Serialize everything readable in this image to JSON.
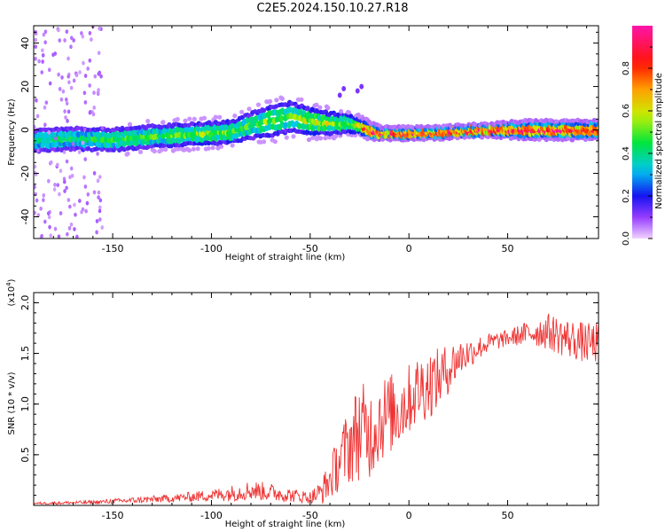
{
  "title": "C2E5.2024.150.10.27.R18",
  "colors": {
    "axis": "#000000",
    "snr_line": "#ee3333",
    "background": "#ffffff"
  },
  "chart_data": [
    {
      "type": "heatmap",
      "xlabel": "Height of straight line (km)",
      "ylabel": "Frequency (Hz)",
      "xlim": [
        -190,
        96
      ],
      "ylim": [
        -50,
        48
      ],
      "x_ticks": [
        -150,
        -100,
        -50,
        0,
        50
      ],
      "y_ticks": [
        -40,
        -20,
        0,
        20,
        40
      ],
      "colorbar": {
        "label": "Normalized spectral amplitude",
        "range": [
          0.0,
          1.0
        ],
        "ticks": [
          0.0,
          0.2,
          0.4,
          0.6,
          0.8
        ],
        "colormap": "rainbow (violet-blue-cyan-green-yellow-red-magenta)"
      },
      "ridge": {
        "x": [
          -190,
          -170,
          -150,
          -130,
          -110,
          -90,
          -80,
          -70,
          -60,
          -50,
          -40,
          -30,
          -25,
          -20,
          -15,
          0,
          20,
          40,
          60,
          80,
          96
        ],
        "frequency": [
          -5,
          -4,
          -4.5,
          -3,
          -2,
          -1,
          2,
          4,
          6,
          4,
          3,
          3,
          2,
          0,
          -1.5,
          -1.5,
          -1,
          0,
          0,
          0,
          0
        ],
        "width_hz": [
          5,
          5,
          5,
          5,
          5,
          5,
          6,
          7,
          7,
          6,
          5,
          4,
          3,
          3,
          2,
          2,
          2,
          2,
          3,
          3,
          3
        ],
        "peak_amplitude": [
          0.45,
          0.45,
          0.5,
          0.5,
          0.55,
          0.55,
          0.5,
          0.55,
          0.5,
          0.6,
          0.6,
          0.55,
          0.7,
          0.9,
          0.95,
          0.95,
          0.95,
          0.95,
          0.95,
          0.95,
          0.95
        ]
      }
    },
    {
      "type": "line",
      "xlabel": "Height of straight line (km)",
      "ylabel": "SNR (10 * v/v)",
      "y_multiplier_label": "(x10",
      "y_multiplier_exp": "4",
      "xlim": [
        -190,
        96
      ],
      "ylim": [
        0,
        2.1
      ],
      "x_ticks": [
        -150,
        -100,
        -50,
        0,
        50
      ],
      "y_ticks": [
        0.5,
        1.0,
        1.5,
        2.0
      ],
      "envelope": {
        "x": [
          -190,
          -160,
          -140,
          -120,
          -100,
          -90,
          -80,
          -70,
          -60,
          -50,
          -45,
          -40,
          -35,
          -30,
          -25,
          -20,
          -15,
          -10,
          -5,
          0,
          5,
          10,
          15,
          20,
          25,
          30,
          35,
          40,
          50,
          60,
          70,
          80,
          90,
          96
        ],
        "mean": [
          0.02,
          0.03,
          0.05,
          0.07,
          0.1,
          0.12,
          0.15,
          0.13,
          0.1,
          0.08,
          0.12,
          0.25,
          0.45,
          0.6,
          0.75,
          0.7,
          0.85,
          0.9,
          0.95,
          1.05,
          1.15,
          1.2,
          1.25,
          1.35,
          1.45,
          1.5,
          1.55,
          1.6,
          1.65,
          1.7,
          1.72,
          1.65,
          1.6,
          1.6
        ],
        "noise": [
          0.01,
          0.02,
          0.03,
          0.04,
          0.06,
          0.08,
          0.1,
          0.09,
          0.07,
          0.06,
          0.12,
          0.2,
          0.3,
          0.4,
          0.5,
          0.45,
          0.45,
          0.4,
          0.4,
          0.35,
          0.35,
          0.35,
          0.3,
          0.25,
          0.2,
          0.15,
          0.12,
          0.1,
          0.08,
          0.12,
          0.18,
          0.2,
          0.2,
          0.2
        ]
      }
    }
  ]
}
